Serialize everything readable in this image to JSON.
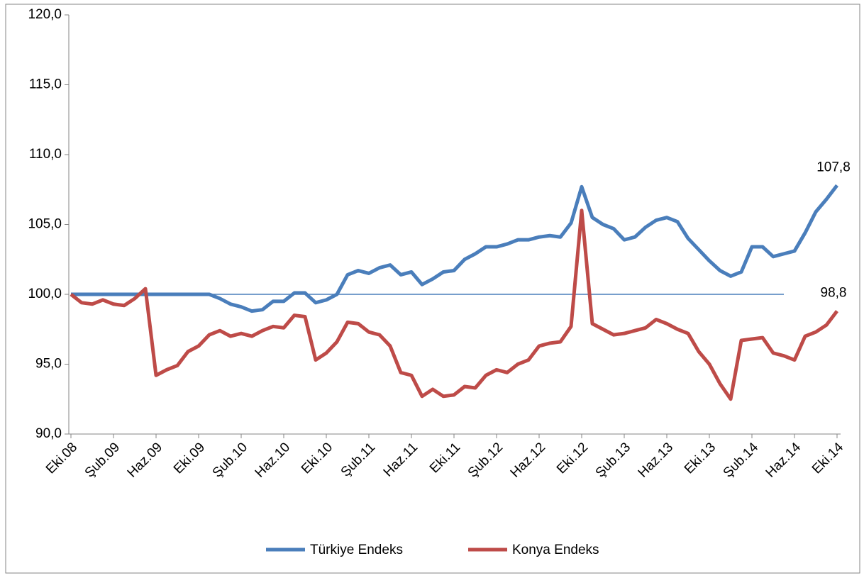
{
  "chart_data": {
    "type": "line",
    "categories": [
      "Eki.08",
      null,
      null,
      null,
      "Şub.09",
      null,
      null,
      null,
      "Haz.09",
      null,
      null,
      null,
      "Eki.09",
      null,
      null,
      null,
      "Şub.10",
      null,
      null,
      null,
      "Haz.10",
      null,
      null,
      null,
      "Eki.10",
      null,
      null,
      null,
      "Şub.11",
      null,
      null,
      null,
      "Haz.11",
      null,
      null,
      null,
      "Eki.11",
      null,
      null,
      null,
      "Şub.12",
      null,
      null,
      null,
      "Haz.12",
      null,
      null,
      null,
      "Eki.12",
      null,
      null,
      null,
      "Şub.13",
      null,
      null,
      null,
      "Haz.13",
      null,
      null,
      null,
      "Eki.13",
      null,
      null,
      null,
      "Şub.14",
      null,
      null,
      null,
      "Haz.14",
      null,
      null,
      null,
      "Eki.14"
    ],
    "series": [
      {
        "name": "Türkiye Endeks",
        "color": "#4a7ebb",
        "values": [
          100.0,
          100.0,
          100.0,
          100.0,
          100.0,
          100.0,
          100.0,
          100.0,
          100.0,
          100.0,
          100.0,
          100.0,
          100.0,
          100.0,
          99.7,
          99.3,
          99.1,
          98.8,
          98.9,
          99.5,
          99.5,
          100.1,
          100.1,
          99.4,
          99.6,
          100.0,
          101.4,
          101.7,
          101.5,
          101.9,
          102.1,
          101.4,
          101.6,
          100.7,
          101.1,
          101.6,
          101.7,
          102.5,
          102.9,
          103.4,
          103.4,
          103.6,
          103.9,
          103.9,
          104.1,
          104.2,
          104.1,
          105.1,
          107.7,
          105.5,
          105.0,
          104.7,
          103.9,
          104.1,
          104.8,
          105.3,
          105.5,
          105.2,
          104.0,
          103.2,
          102.4,
          101.7,
          101.3,
          101.6,
          103.4,
          103.4,
          102.7,
          102.9,
          103.1,
          104.4,
          105.9,
          106.8,
          107.8
        ],
        "value_labels": [
          null,
          null,
          null,
          null,
          null,
          null,
          null,
          null,
          null,
          null,
          null,
          null,
          null,
          null,
          null,
          null,
          null,
          null,
          null,
          null,
          null,
          null,
          null,
          null,
          null,
          null,
          null,
          null,
          null,
          null,
          null,
          null,
          null,
          null,
          null,
          null,
          null,
          null,
          null,
          null,
          null,
          null,
          null,
          null,
          null,
          null,
          null,
          null,
          null,
          null,
          null,
          null,
          null,
          null,
          null,
          null,
          null,
          null,
          null,
          null,
          null,
          null,
          null,
          null,
          null,
          null,
          null,
          null,
          null,
          null,
          null,
          null,
          "107,8"
        ]
      },
      {
        "name": "Konya Endeks",
        "color": "#be4b48",
        "values": [
          100.0,
          99.4,
          99.3,
          99.6,
          99.3,
          99.2,
          99.7,
          100.4,
          94.2,
          94.6,
          94.9,
          95.9,
          96.3,
          97.1,
          97.4,
          97.0,
          97.2,
          97.0,
          97.4,
          97.7,
          97.6,
          98.5,
          98.4,
          95.3,
          95.8,
          96.6,
          98.0,
          97.9,
          97.3,
          97.1,
          96.3,
          94.4,
          94.2,
          92.7,
          93.2,
          92.7,
          92.8,
          93.4,
          93.3,
          94.2,
          94.6,
          94.4,
          95.0,
          95.3,
          96.3,
          96.5,
          96.6,
          97.7,
          106.0,
          97.9,
          97.5,
          97.1,
          97.2,
          97.4,
          97.6,
          98.2,
          97.9,
          97.5,
          97.2,
          95.9,
          95.0,
          93.6,
          92.5,
          96.7,
          96.8,
          96.9,
          95.8,
          95.6,
          95.3,
          97.0,
          97.3,
          97.8,
          98.8
        ],
        "value_labels": [
          null,
          null,
          null,
          null,
          null,
          null,
          null,
          null,
          null,
          null,
          null,
          null,
          null,
          null,
          null,
          null,
          null,
          null,
          null,
          null,
          null,
          null,
          null,
          null,
          null,
          null,
          null,
          null,
          null,
          null,
          null,
          null,
          null,
          null,
          null,
          null,
          null,
          null,
          null,
          null,
          null,
          null,
          null,
          null,
          null,
          null,
          null,
          null,
          null,
          null,
          null,
          null,
          null,
          null,
          null,
          null,
          null,
          null,
          null,
          null,
          null,
          null,
          null,
          null,
          null,
          null,
          null,
          null,
          null,
          null,
          null,
          null,
          "98,8"
        ]
      }
    ],
    "reference_line": 100,
    "ylim": [
      90,
      120
    ],
    "yticks": [
      {
        "value": 90,
        "label": "90,0"
      },
      {
        "value": 95,
        "label": "95,0"
      },
      {
        "value": 100,
        "label": "100,0"
      },
      {
        "value": 105,
        "label": "105,0"
      },
      {
        "value": 110,
        "label": "110,0"
      },
      {
        "value": 115,
        "label": "115,0"
      },
      {
        "value": 120,
        "label": "120,0"
      }
    ],
    "legend": "bottom"
  }
}
